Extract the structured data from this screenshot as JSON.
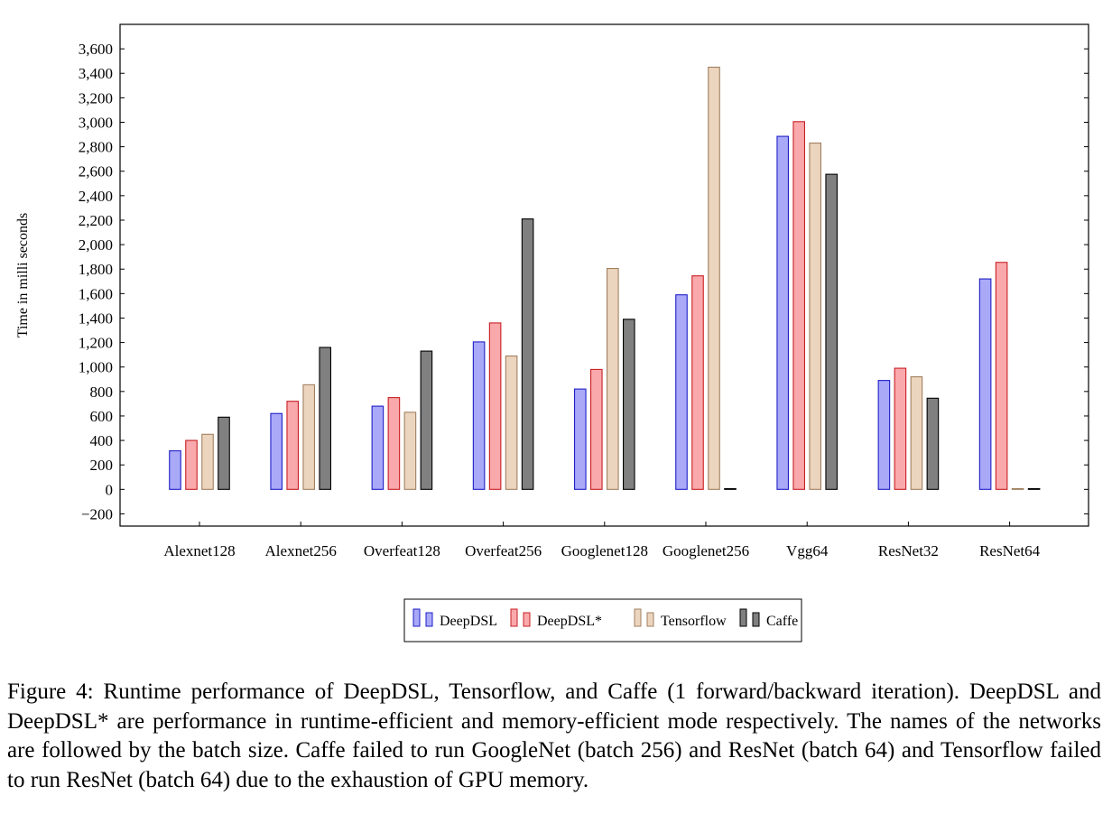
{
  "chart_data": {
    "type": "bar",
    "title": "",
    "xlabel": "",
    "ylabel": "Time in milli seconds",
    "ylim": [
      -300,
      3800
    ],
    "yticks": [
      -200,
      0,
      200,
      400,
      600,
      800,
      1000,
      1200,
      1400,
      1600,
      1800,
      2000,
      2200,
      2400,
      2600,
      2800,
      3000,
      3200,
      3400,
      3600
    ],
    "ytick_labels": [
      "−200",
      "0",
      "200",
      "400",
      "600",
      "800",
      "1,000",
      "1,200",
      "1,400",
      "1,600",
      "1,800",
      "2,000",
      "2,200",
      "2,400",
      "2,600",
      "2,800",
      "3,000",
      "3,200",
      "3,400",
      "3,600"
    ],
    "categories": [
      "Alexnet128",
      "Alexnet256",
      "Overfeat128",
      "Overfeat256",
      "Googlenet128",
      "Googlenet256",
      "Vgg64",
      "ResNet32",
      "ResNet64"
    ],
    "series": [
      {
        "name": "DeepDSL",
        "color": "#a9a9f8",
        "edge": "#1f1fc8",
        "values": [
          315,
          620,
          680,
          1205,
          820,
          1590,
          2885,
          890,
          1720
        ]
      },
      {
        "name": "DeepDSL*",
        "color": "#f9a9ab",
        "edge": "#c81f24",
        "values": [
          400,
          720,
          750,
          1360,
          980,
          1745,
          3005,
          990,
          1855
        ]
      },
      {
        "name": "Tensorflow",
        "color": "#ecd5be",
        "edge": "#a08060",
        "values": [
          450,
          855,
          630,
          1090,
          1805,
          3450,
          2830,
          920,
          0
        ]
      },
      {
        "name": "Caffe",
        "color": "#808080",
        "edge": "#000000",
        "values": [
          590,
          1160,
          1130,
          2210,
          1390,
          0,
          2575,
          745,
          0
        ]
      }
    ],
    "legend_position": "bottom-center",
    "grid": false
  },
  "caption": "Figure 4: Runtime performance of DeepDSL, Tensorflow, and Caffe (1 forward/backward iteration). DeepDSL and DeepDSL* are performance in runtime-efficient and memory-efficient mode respectively. The names of the networks are followed by the batch size. Caffe failed to run GoogleNet (batch 256) and ResNet (batch 64) and Tensorflow failed to run ResNet (batch 64) due to the exhaustion of GPU memory."
}
